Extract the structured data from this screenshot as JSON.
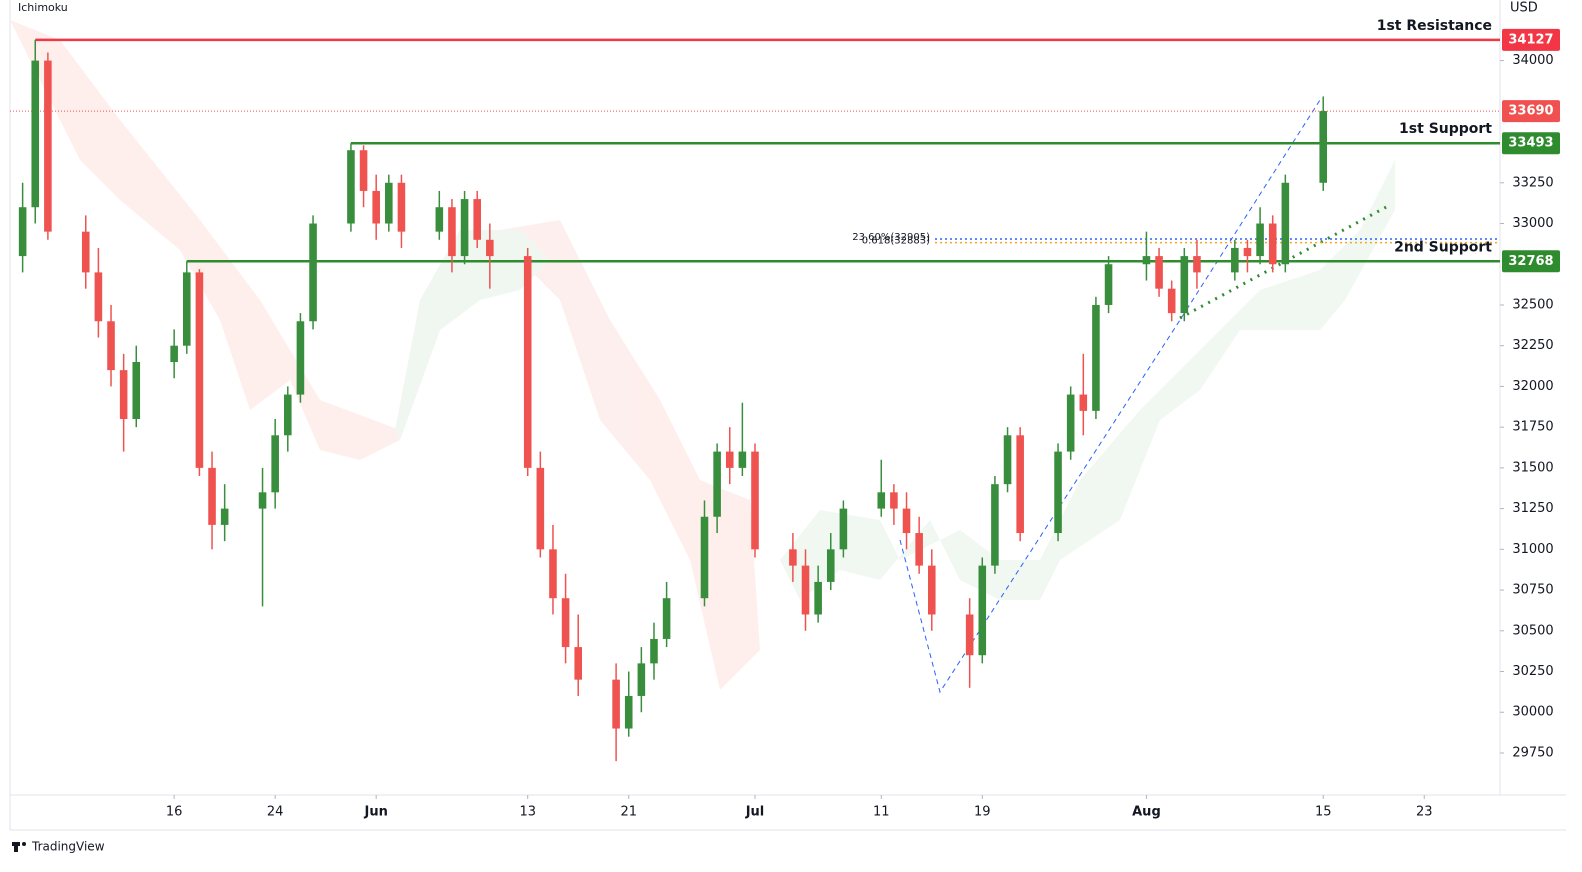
{
  "chart_data": {
    "type": "candlestick",
    "indicator": "Ichimoku",
    "currency": "USD",
    "brand": "TradingView",
    "up_color": "#388e3c",
    "down_color": "#ef5350",
    "xlim": [
      "05-03",
      "08-29"
    ],
    "ylim": [
      29492,
      34372
    ],
    "yticks": [
      29750,
      30000,
      30250,
      30500,
      30750,
      31000,
      31250,
      31500,
      31750,
      32000,
      32250,
      32500,
      33000,
      33250,
      34000
    ],
    "xticks": [
      {
        "value": "05-16",
        "label": "16"
      },
      {
        "value": "05-24",
        "label": "24"
      },
      {
        "value": "06-01",
        "label": "Jun"
      },
      {
        "value": "06-13",
        "label": "13"
      },
      {
        "value": "06-21",
        "label": "21"
      },
      {
        "value": "07-01",
        "label": "Jul"
      },
      {
        "value": "07-11",
        "label": "11"
      },
      {
        "value": "07-19",
        "label": "19"
      },
      {
        "value": "08-01",
        "label": "Aug"
      },
      {
        "value": "08-15",
        "label": "15"
      },
      {
        "value": "08-23",
        "label": "23"
      }
    ],
    "x": [
      "05-04",
      "05-05",
      "05-06",
      "05-09",
      "05-10",
      "05-11",
      "05-12",
      "05-13",
      "05-16",
      "05-17",
      "05-18",
      "05-19",
      "05-20",
      "05-23",
      "05-24",
      "05-25",
      "05-26",
      "05-27",
      "05-30",
      "05-31",
      "06-01",
      "06-02",
      "06-03",
      "06-06",
      "06-07",
      "06-08",
      "06-09",
      "06-10",
      "06-13",
      "06-14",
      "06-15",
      "06-16",
      "06-17",
      "06-20",
      "06-21",
      "06-22",
      "06-23",
      "06-24",
      "06-27",
      "06-28",
      "06-29",
      "06-30",
      "07-01",
      "07-04",
      "07-05",
      "07-06",
      "07-07",
      "07-08",
      "07-11",
      "07-12",
      "07-13",
      "07-14",
      "07-15",
      "07-18",
      "07-19",
      "07-20",
      "07-21",
      "07-22",
      "07-25",
      "07-26",
      "07-27",
      "07-28",
      "07-29",
      "08-01",
      "08-02",
      "08-03",
      "08-04",
      "08-05",
      "08-08",
      "08-09",
      "08-10",
      "08-11",
      "08-12",
      "08-15"
    ],
    "ohlc": [
      [
        32800,
        33250,
        32700,
        33100
      ],
      [
        33100,
        34127,
        33000,
        34000
      ],
      [
        34000,
        34050,
        32900,
        32950
      ],
      [
        32950,
        33050,
        32600,
        32700
      ],
      [
        32700,
        32850,
        32300,
        32400
      ],
      [
        32400,
        32500,
        32000,
        32100
      ],
      [
        32100,
        32200,
        31600,
        31800
      ],
      [
        31800,
        32250,
        31750,
        32150
      ],
      [
        32150,
        32350,
        32050,
        32250
      ],
      [
        32250,
        32768,
        32200,
        32700
      ],
      [
        32700,
        32720,
        31450,
        31500
      ],
      [
        31500,
        31600,
        31000,
        31150
      ],
      [
        31150,
        31400,
        31050,
        31250
      ],
      [
        31250,
        31500,
        30650,
        31350
      ],
      [
        31350,
        31800,
        31250,
        31700
      ],
      [
        31700,
        32000,
        31600,
        31950
      ],
      [
        31950,
        32450,
        31900,
        32400
      ],
      [
        32400,
        33050,
        32350,
        33000
      ],
      [
        33000,
        33493,
        32950,
        33450
      ],
      [
        33450,
        33480,
        33100,
        33200
      ],
      [
        33200,
        33300,
        32900,
        33000
      ],
      [
        33000,
        33300,
        32950,
        33250
      ],
      [
        33250,
        33300,
        32850,
        32950
      ],
      [
        32950,
        33200,
        32900,
        33100
      ],
      [
        33100,
        33150,
        32700,
        32800
      ],
      [
        32800,
        33200,
        32750,
        33150
      ],
      [
        33150,
        33200,
        32850,
        32900
      ],
      [
        32900,
        33000,
        32600,
        32800
      ],
      [
        32800,
        32850,
        31450,
        31500
      ],
      [
        31500,
        31600,
        30950,
        31000
      ],
      [
        31000,
        31150,
        30600,
        30700
      ],
      [
        30700,
        30850,
        30300,
        30400
      ],
      [
        30400,
        30600,
        30100,
        30200
      ],
      [
        30200,
        30300,
        29700,
        29900
      ],
      [
        29900,
        30250,
        29850,
        30100
      ],
      [
        30100,
        30400,
        30000,
        30300
      ],
      [
        30300,
        30550,
        30200,
        30450
      ],
      [
        30450,
        30800,
        30400,
        30700
      ],
      [
        30700,
        31300,
        30650,
        31200
      ],
      [
        31200,
        31650,
        31100,
        31600
      ],
      [
        31600,
        31750,
        31400,
        31500
      ],
      [
        31500,
        31900,
        31450,
        31600
      ],
      [
        31600,
        31650,
        30950,
        31000
      ],
      [
        31000,
        31100,
        30800,
        30900
      ],
      [
        30900,
        31000,
        30500,
        30600
      ],
      [
        30600,
        30900,
        30550,
        30800
      ],
      [
        30800,
        31100,
        30750,
        31000
      ],
      [
        31000,
        31300,
        30950,
        31250
      ],
      [
        31250,
        31550,
        31200,
        31350
      ],
      [
        31350,
        31400,
        31150,
        31250
      ],
      [
        31250,
        31350,
        31000,
        31100
      ],
      [
        31100,
        31200,
        30850,
        30900
      ],
      [
        30900,
        31000,
        30500,
        30600
      ],
      [
        30600,
        30700,
        30150,
        30350
      ],
      [
        30350,
        30950,
        30300,
        30900
      ],
      [
        30900,
        31450,
        30850,
        31400
      ],
      [
        31400,
        31750,
        31350,
        31700
      ],
      [
        31700,
        31750,
        31050,
        31100
      ],
      [
        31100,
        31650,
        31050,
        31600
      ],
      [
        31600,
        32000,
        31550,
        31950
      ],
      [
        31950,
        32200,
        31700,
        31850
      ],
      [
        31850,
        32550,
        31800,
        32500
      ],
      [
        32500,
        32800,
        32450,
        32750
      ],
      [
        32750,
        32950,
        32650,
        32800
      ],
      [
        32800,
        32850,
        32550,
        32600
      ],
      [
        32600,
        32650,
        32400,
        32450
      ],
      [
        32450,
        32850,
        32400,
        32800
      ],
      [
        32800,
        32900,
        32600,
        32700
      ],
      [
        32700,
        32900,
        32650,
        32850
      ],
      [
        32850,
        32900,
        32700,
        32800
      ],
      [
        32800,
        33100,
        32750,
        33000
      ],
      [
        33000,
        33050,
        32700,
        32750
      ],
      [
        32750,
        33300,
        32700,
        33250
      ],
      [
        33250,
        33780,
        33200,
        33690
      ]
    ],
    "levels": [
      {
        "name": "1st Resistance",
        "value": 34127,
        "color": "#f23645",
        "start": "05-05"
      },
      {
        "name": "1st Support",
        "value": 33493,
        "color": "#2e8b2e",
        "start": "05-30"
      },
      {
        "name": "2nd Support",
        "value": 32768,
        "color": "#2e8b2e",
        "start": "05-17"
      }
    ],
    "fib": [
      {
        "label": "0.618(32883)",
        "value": 32883,
        "color": "#f5a623"
      },
      {
        "label": "23.60%(32905)",
        "value": 32905,
        "color": "#2962ff"
      }
    ],
    "last_price": 33690,
    "last_color": "#f05050"
  }
}
